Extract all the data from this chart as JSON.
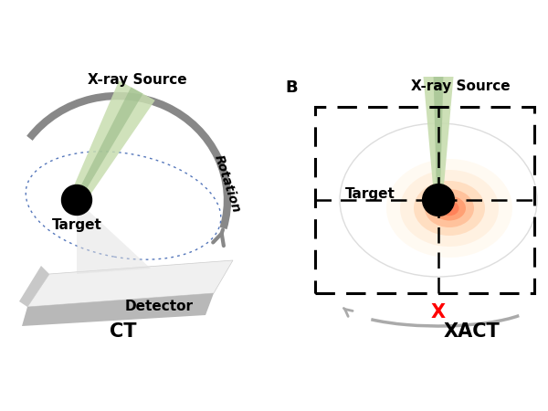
{
  "bg_color": "#ffffff",
  "ct_label": "CT",
  "xact_label": "XACT",
  "panel_b_label": "B",
  "xray_source_label": "X-ray Source",
  "target_label": "Target",
  "detector_label": "Detector",
  "rotation_label": "Rotation",
  "x_label": "X",
  "title_fontsize": 15,
  "label_fontsize": 11,
  "small_fontsize": 10,
  "beam_color_light": "#c8ddb0",
  "beam_color_dark": "#99bb88",
  "arc_color": "#888888",
  "orbit_color": "#5577bb",
  "det_top": "#e8e8e8",
  "det_side": "#b0b0b0",
  "det_front": "#cccccc"
}
